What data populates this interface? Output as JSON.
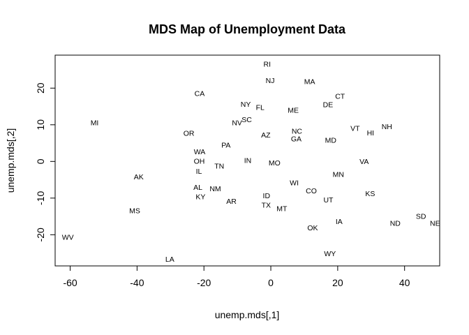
{
  "chart_data": {
    "type": "scatter",
    "title": "MDS Map of Unemployment Data",
    "xlabel": "unemp.mds[,1]",
    "ylabel": "unemp.mds[,2]",
    "xlim": [
      -64.5,
      50.5
    ],
    "ylim": [
      -28.5,
      29.0
    ],
    "xticks": [
      -60,
      -40,
      -20,
      0,
      20,
      40
    ],
    "yticks": [
      -20,
      -10,
      0,
      10,
      20
    ],
    "grid": false,
    "points": [
      {
        "label": "RI",
        "x": -1.1,
        "y": 26.6
      },
      {
        "label": "NJ",
        "x": -0.2,
        "y": 22.1
      },
      {
        "label": "MA",
        "x": 11.6,
        "y": 21.9
      },
      {
        "label": "CA",
        "x": -21.3,
        "y": 18.6
      },
      {
        "label": "CT",
        "x": 20.7,
        "y": 17.9
      },
      {
        "label": "DE",
        "x": 17.1,
        "y": 15.6
      },
      {
        "label": "NY",
        "x": -7.5,
        "y": 15.7
      },
      {
        "label": "FL",
        "x": -3.2,
        "y": 14.8
      },
      {
        "label": "ME",
        "x": 6.7,
        "y": 14.1
      },
      {
        "label": "SC",
        "x": -7.2,
        "y": 11.5
      },
      {
        "label": "NV",
        "x": -10.1,
        "y": 10.6
      },
      {
        "label": "MI",
        "x": -52.7,
        "y": 10.6
      },
      {
        "label": "NH",
        "x": 34.7,
        "y": 9.6
      },
      {
        "label": "VT",
        "x": 25.2,
        "y": 9.1
      },
      {
        "label": "HI",
        "x": 29.8,
        "y": 7.9
      },
      {
        "label": "NC",
        "x": 7.8,
        "y": 8.3
      },
      {
        "label": "OR",
        "x": -24.5,
        "y": 7.8
      },
      {
        "label": "AZ",
        "x": -1.5,
        "y": 7.3
      },
      {
        "label": "GA",
        "x": 7.6,
        "y": 6.2
      },
      {
        "label": "MD",
        "x": 17.9,
        "y": 5.9
      },
      {
        "label": "PA",
        "x": -13.4,
        "y": 4.5
      },
      {
        "label": "WA",
        "x": -21.3,
        "y": 2.7
      },
      {
        "label": "IN",
        "x": -6.9,
        "y": 0.3
      },
      {
        "label": "OH",
        "x": -21.4,
        "y": 0.2
      },
      {
        "label": "VA",
        "x": 27.9,
        "y": 0.1
      },
      {
        "label": "MO",
        "x": 1.1,
        "y": -0.3
      },
      {
        "label": "TN",
        "x": -15.4,
        "y": -1.2
      },
      {
        "label": "IL",
        "x": -21.5,
        "y": -2.6
      },
      {
        "label": "MN",
        "x": 20.2,
        "y": -3.5
      },
      {
        "label": "AK",
        "x": -39.5,
        "y": -4.1
      },
      {
        "label": "WI",
        "x": 7.0,
        "y": -5.7
      },
      {
        "label": "AL",
        "x": -21.8,
        "y": -7.0
      },
      {
        "label": "NM",
        "x": -16.6,
        "y": -7.4
      },
      {
        "label": "CO",
        "x": 12.1,
        "y": -7.9
      },
      {
        "label": "KS",
        "x": 29.7,
        "y": -8.7
      },
      {
        "label": "ID",
        "x": -1.3,
        "y": -9.3
      },
      {
        "label": "KY",
        "x": -21.0,
        "y": -9.6
      },
      {
        "label": "UT",
        "x": 17.2,
        "y": -10.4
      },
      {
        "label": "AR",
        "x": -11.8,
        "y": -10.8
      },
      {
        "label": "TX",
        "x": -1.4,
        "y": -11.8
      },
      {
        "label": "MT",
        "x": 3.3,
        "y": -12.8
      },
      {
        "label": "MS",
        "x": -40.7,
        "y": -13.4
      },
      {
        "label": "SD",
        "x": 44.9,
        "y": -14.9
      },
      {
        "label": "IA",
        "x": 20.4,
        "y": -16.3
      },
      {
        "label": "ND",
        "x": 37.2,
        "y": -16.8
      },
      {
        "label": "NE",
        "x": 49.1,
        "y": -16.8
      },
      {
        "label": "OK",
        "x": 12.5,
        "y": -18.0
      },
      {
        "label": "WV",
        "x": -60.7,
        "y": -20.6
      },
      {
        "label": "WY",
        "x": 17.7,
        "y": -25.1
      },
      {
        "label": "LA",
        "x": -30.2,
        "y": -26.6
      }
    ]
  }
}
